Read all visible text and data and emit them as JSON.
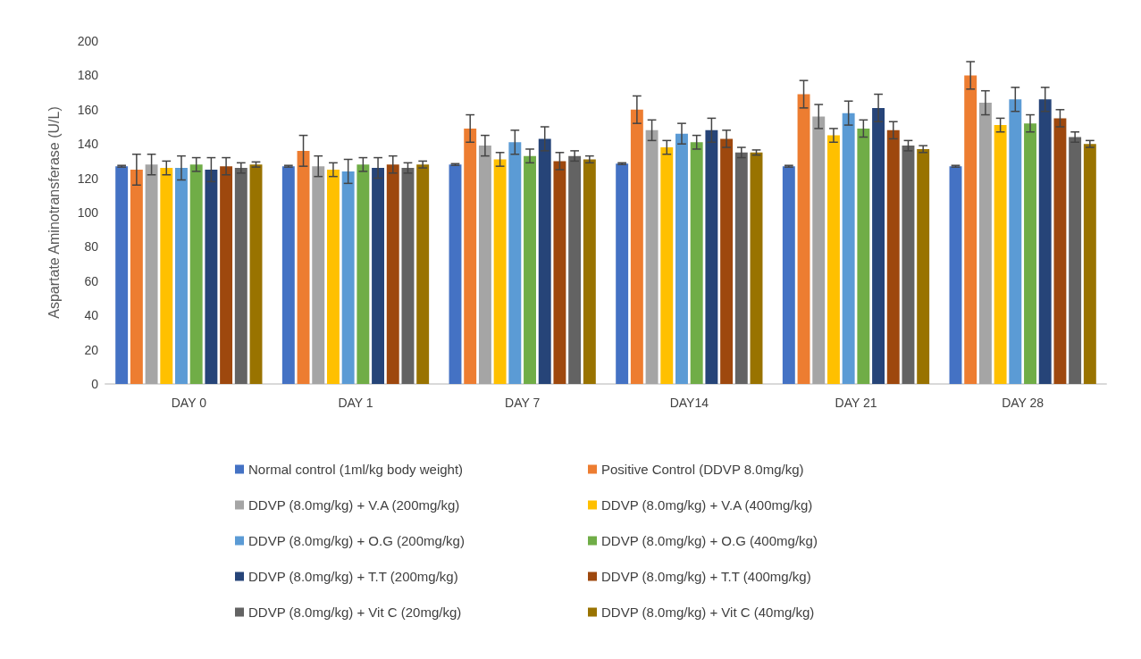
{
  "chart_data": {
    "type": "bar",
    "ylabel": "Aspartate Aminotransferase (U/L)",
    "categories": [
      "DAY 0",
      "DAY 1",
      "DAY 7",
      "DAY14",
      "DAY 21",
      "DAY 28"
    ],
    "ylim": [
      0,
      200
    ],
    "yticks": [
      0,
      20,
      40,
      60,
      80,
      100,
      120,
      140,
      160,
      180,
      200
    ],
    "grid": false,
    "legend": "bottom",
    "series": [
      {
        "name": "Normal control (1ml/kg body weight)",
        "color": "#4472c4",
        "values": [
          127,
          127,
          128,
          128.5,
          127,
          127
        ],
        "errors": [
          0.5,
          0.5,
          0.5,
          0.5,
          0.5,
          0.5
        ]
      },
      {
        "name": "Positive Control (DDVP 8.0mg/kg)",
        "color": "#ed7d31",
        "values": [
          125,
          136,
          149,
          160,
          169,
          180
        ],
        "errors": [
          9,
          9,
          8,
          8,
          8,
          8
        ]
      },
      {
        "name": "DDVP (8.0mg/kg) + V.A (200mg/kg)",
        "color": "#a5a5a5",
        "values": [
          128,
          127,
          139,
          148,
          156,
          164
        ],
        "errors": [
          6,
          6,
          6,
          6,
          7,
          7
        ]
      },
      {
        "name": "DDVP (8.0mg/kg) + V.A (400mg/kg)",
        "color": "#ffc000",
        "values": [
          126,
          125,
          131,
          138,
          145,
          151
        ],
        "errors": [
          4,
          4,
          4,
          4,
          4,
          4
        ]
      },
      {
        "name": "DDVP (8.0mg/kg) + O.G (200mg/kg)",
        "color": "#5b9bd5",
        "values": [
          126,
          124,
          141,
          146,
          158,
          166
        ],
        "errors": [
          7,
          7,
          7,
          6,
          7,
          7
        ]
      },
      {
        "name": "DDVP (8.0mg/kg) + O.G (400mg/kg)",
        "color": "#70ad47",
        "values": [
          128,
          128,
          133,
          141,
          149,
          152
        ],
        "errors": [
          4,
          4,
          4,
          4,
          5,
          5
        ]
      },
      {
        "name": "DDVP (8.0mg/kg) + T.T (200mg/kg)",
        "color": "#264478",
        "values": [
          125,
          126,
          143,
          148,
          161,
          166
        ],
        "errors": [
          7,
          6,
          7,
          7,
          8,
          7
        ]
      },
      {
        "name": "DDVP (8.0mg/kg) + T.T (400mg/kg)",
        "color": "#9e480e",
        "values": [
          127,
          128,
          130,
          143,
          148,
          155
        ],
        "errors": [
          5,
          5,
          5,
          5,
          5,
          5
        ]
      },
      {
        "name": "DDVP (8.0mg/kg) + Vit C (20mg/kg)",
        "color": "#636363",
        "values": [
          126,
          126,
          133,
          135,
          139,
          144
        ],
        "errors": [
          3,
          3,
          3,
          3,
          3,
          3
        ]
      },
      {
        "name": "DDVP (8.0mg/kg) + Vit C (40mg/kg)",
        "color": "#997300",
        "values": [
          128,
          128,
          131,
          135,
          137,
          140
        ],
        "errors": [
          1.5,
          2,
          2,
          1.5,
          2,
          2
        ]
      }
    ]
  }
}
